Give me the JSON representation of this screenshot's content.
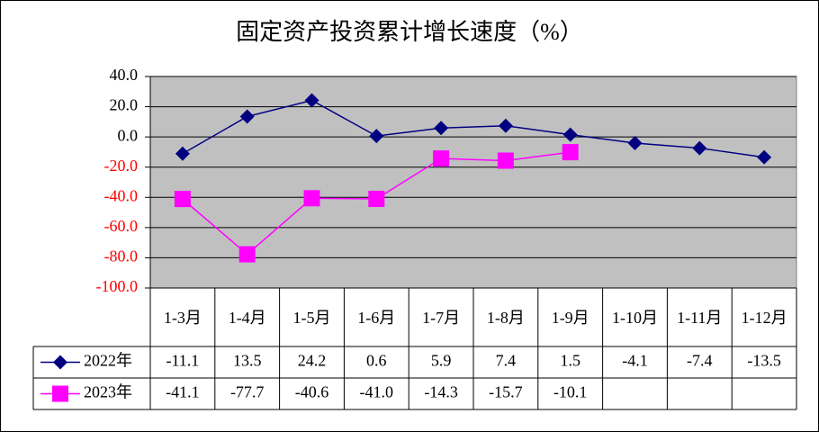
{
  "chart_data": {
    "type": "line",
    "title": "固定资产投资累计增长速度（%）",
    "categories": [
      "1-3月",
      "1-4月",
      "1-5月",
      "1-6月",
      "1-7月",
      "1-8月",
      "1-9月",
      "1-10月",
      "1-11月",
      "1-12月"
    ],
    "series": [
      {
        "name": "2022年",
        "color": "#000080",
        "marker": "diamond",
        "values": [
          -11.1,
          13.5,
          24.2,
          0.6,
          5.9,
          7.4,
          1.5,
          -4.1,
          -7.4,
          -13.5
        ]
      },
      {
        "name": "2023年",
        "color": "#ff00ff",
        "marker": "square",
        "values": [
          -41.1,
          -77.7,
          -40.6,
          -41.0,
          -14.3,
          -15.7,
          -10.1,
          null,
          null,
          null
        ],
        "value_labels": [
          "-41.1",
          "-77.7",
          "-40.6",
          "-41.0",
          "-14.3",
          "-15.7",
          "-10.1",
          null,
          null,
          null
        ]
      }
    ],
    "ylim": [
      -100,
      40
    ],
    "yticks": [
      {
        "value": 40,
        "label": "40.0"
      },
      {
        "value": 20,
        "label": "20.0"
      },
      {
        "value": 0,
        "label": "0.0"
      },
      {
        "value": -20,
        "label": "-20.0"
      },
      {
        "value": -40,
        "label": "-40.0"
      },
      {
        "value": -60,
        "label": "-60.0"
      },
      {
        "value": -80,
        "label": "-80.0"
      },
      {
        "value": -100,
        "label": "-100.0"
      }
    ],
    "grid": true,
    "plot_background": "#c0c0c0",
    "tick_label_color": "#000000",
    "negative_tick_label_color": "#ff0000",
    "data_table": true
  }
}
